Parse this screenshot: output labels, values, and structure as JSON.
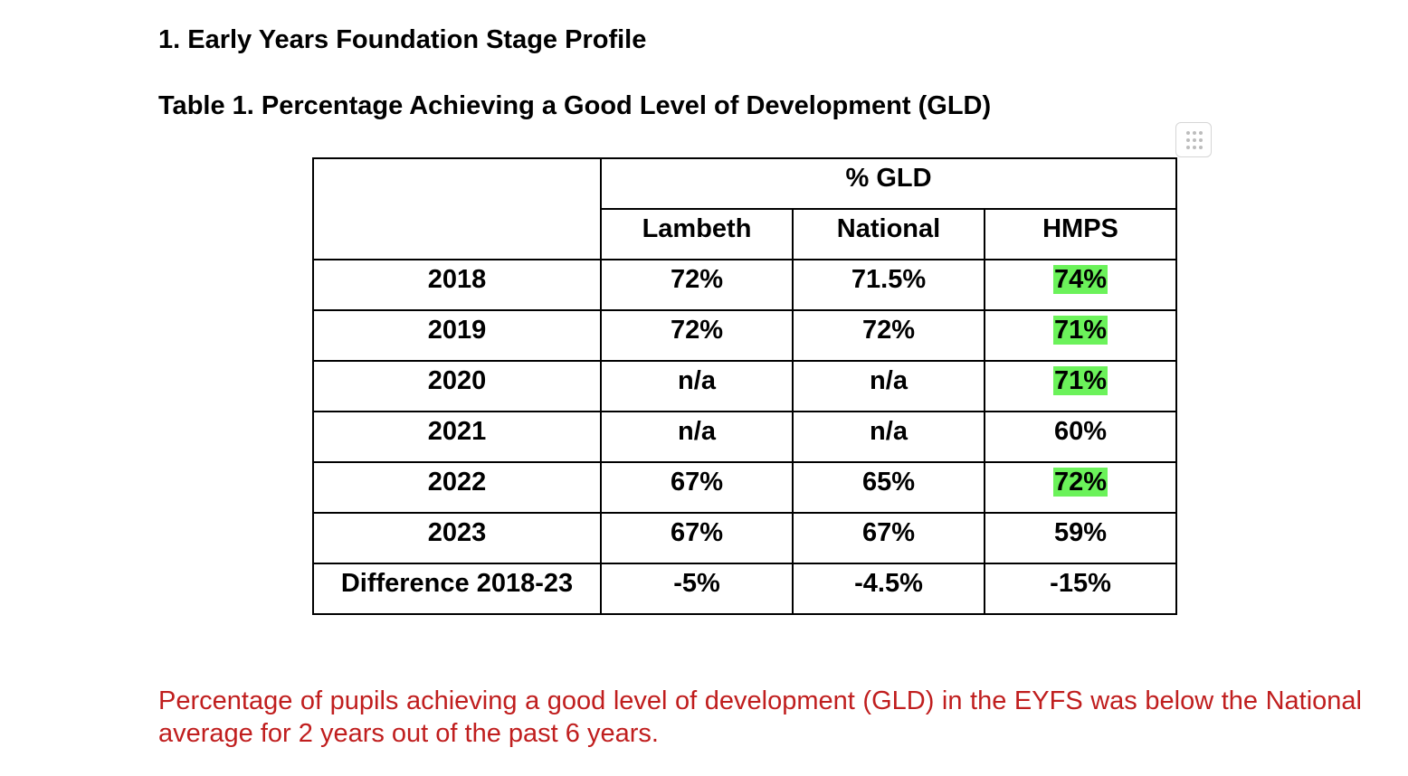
{
  "section_heading": "1. Early Years Foundation Stage Profile",
  "table_caption": "Table 1. Percentage Achieving a Good Level of Development (GLD)",
  "table": {
    "group_header": "% GLD",
    "columns": [
      "Lambeth",
      "National",
      "HMPS"
    ],
    "rows": [
      {
        "label": "2018",
        "lambeth": "72%",
        "national": "71.5%",
        "hmps": "74%",
        "hmps_highlighted": true
      },
      {
        "label": "2019",
        "lambeth": "72%",
        "national": "72%",
        "hmps": "71%",
        "hmps_highlighted": true
      },
      {
        "label": "2020",
        "lambeth": "n/a",
        "national": "n/a",
        "hmps": "71%",
        "hmps_highlighted": true
      },
      {
        "label": "2021",
        "lambeth": "n/a",
        "national": "n/a",
        "hmps": "60%",
        "hmps_highlighted": false
      },
      {
        "label": "2022",
        "lambeth": "67%",
        "national": "65%",
        "hmps": "72%",
        "hmps_highlighted": true
      },
      {
        "label": "2023",
        "lambeth": "67%",
        "national": "67%",
        "hmps": "59%",
        "hmps_highlighted": false
      },
      {
        "label": "Difference 2018-23",
        "lambeth": "-5%",
        "national": "-4.5%",
        "hmps": "-15%",
        "hmps_highlighted": false
      }
    ]
  },
  "note": "Percentage of pupils achieving a good level of development (GLD) in the EYFS was below the National average for 2 years out of the past 6 years.",
  "colors": {
    "highlight": "#6bf25a",
    "note_text": "#c01e1e"
  },
  "icons": {
    "table_handle": "drag-handle-icon"
  }
}
